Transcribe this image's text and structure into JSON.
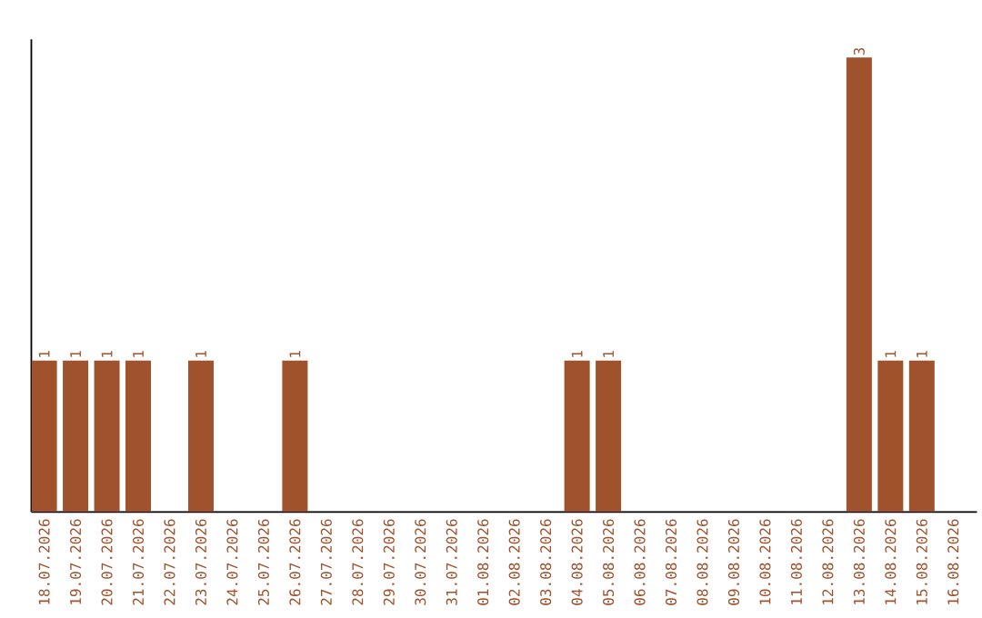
{
  "chart_data": {
    "type": "bar",
    "color": "#a0522d",
    "categories": [
      "18.07.2026",
      "19.07.2026",
      "20.07.2026",
      "21.07.2026",
      "22.07.2026",
      "23.07.2026",
      "24.07.2026",
      "25.07.2026",
      "26.07.2026",
      "27.07.2026",
      "28.07.2026",
      "29.07.2026",
      "30.07.2026",
      "31.07.2026",
      "01.08.2026",
      "02.08.2026",
      "03.08.2026",
      "04.08.2026",
      "05.08.2026",
      "06.08.2026",
      "07.08.2026",
      "08.08.2026",
      "09.08.2026",
      "10.08.2026",
      "11.08.2026",
      "12.08.2026",
      "13.08.2026",
      "14.08.2026",
      "15.08.2026",
      "16.08.2026"
    ],
    "values": [
      1,
      1,
      1,
      1,
      0,
      1,
      0,
      0,
      1,
      0,
      0,
      0,
      0,
      0,
      0,
      0,
      0,
      1,
      1,
      0,
      0,
      0,
      0,
      0,
      0,
      0,
      3,
      1,
      1,
      0
    ],
    "value_labels": [
      "1",
      "1",
      "1",
      "1",
      null,
      "1",
      null,
      null,
      "1",
      null,
      null,
      null,
      null,
      null,
      null,
      null,
      null,
      "1",
      "1",
      null,
      null,
      null,
      null,
      null,
      null,
      null,
      "3",
      "1",
      "1",
      null
    ]
  }
}
